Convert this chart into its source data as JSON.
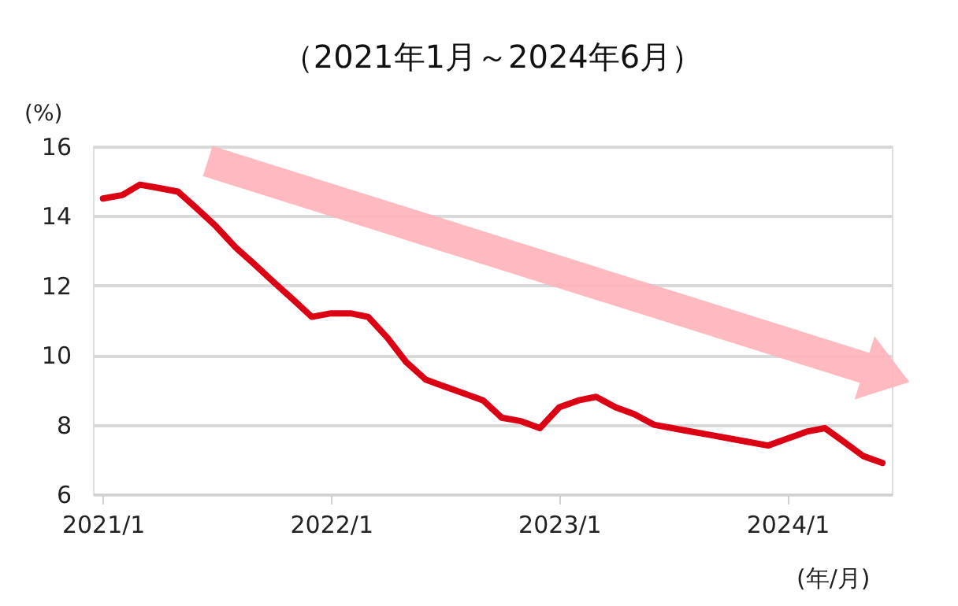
{
  "chart_data": {
    "type": "line",
    "title": "（2021年1月～2024年6月）",
    "ylabel": "(%)",
    "xlabel": "(年/月)",
    "x": [
      "2021-01",
      "2021-02",
      "2021-03",
      "2021-04",
      "2021-05",
      "2021-06",
      "2021-07",
      "2021-08",
      "2021-09",
      "2021-10",
      "2021-11",
      "2021-12",
      "2022-01",
      "2022-02",
      "2022-03",
      "2022-04",
      "2022-05",
      "2022-06",
      "2022-07",
      "2022-08",
      "2022-09",
      "2022-10",
      "2022-11",
      "2022-12",
      "2023-01",
      "2023-02",
      "2023-03",
      "2023-04",
      "2023-05",
      "2023-06",
      "2023-07",
      "2023-08",
      "2023-09",
      "2023-10",
      "2023-11",
      "2023-12",
      "2024-01",
      "2024-02",
      "2024-03",
      "2024-04",
      "2024-05",
      "2024-06"
    ],
    "series": [
      {
        "color": "#dc0014",
        "values": [
          14.5,
          14.6,
          14.9,
          14.8,
          14.7,
          14.2,
          13.7,
          13.1,
          12.6,
          12.1,
          11.6,
          11.1,
          11.2,
          11.2,
          11.1,
          10.5,
          9.8,
          9.3,
          9.1,
          8.9,
          8.7,
          8.2,
          8.1,
          7.9,
          8.5,
          8.7,
          8.8,
          8.5,
          8.3,
          8.0,
          7.9,
          7.8,
          7.7,
          7.6,
          7.5,
          7.4,
          7.6,
          7.8,
          7.9,
          7.5,
          7.1,
          6.9
        ]
      }
    ],
    "xlim": [
      "2020-12-16",
      "2024-06-16"
    ],
    "xticks": [
      {
        "value": "2021-01",
        "label": "2021/1"
      },
      {
        "value": "2022-01",
        "label": "2022/1"
      },
      {
        "value": "2023-01",
        "label": "2023/1"
      },
      {
        "value": "2024-01",
        "label": "2024/1"
      }
    ],
    "ylim": [
      6,
      16
    ],
    "yticks": [
      6,
      8,
      10,
      12,
      14,
      16
    ],
    "grid": "y",
    "line_style": "solid",
    "marker": "none"
  }
}
